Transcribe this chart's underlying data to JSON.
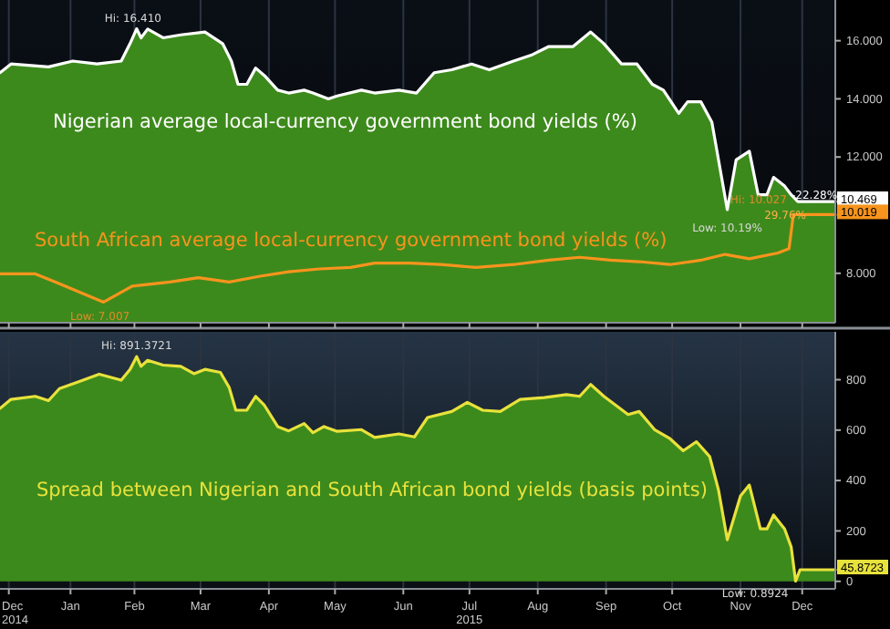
{
  "chart_data": [
    {
      "type": "area",
      "xlim": [
        "2014-12-14",
        "2015-12-28"
      ],
      "ylim": [
        6.3,
        17.4
      ],
      "xticks": [
        {
          "value": "2014-12-18",
          "label": null
        },
        {
          "value": "2015-01-15",
          "label": null
        },
        {
          "value": "2015-02-13",
          "label": null
        },
        {
          "value": "2015-03-15",
          "label": null
        },
        {
          "value": "2015-04-15",
          "label": null
        },
        {
          "value": "2015-05-15",
          "label": null
        },
        {
          "value": "2015-06-15",
          "label": null
        },
        {
          "value": "2015-07-15",
          "label": null
        },
        {
          "value": "2015-08-15",
          "label": null
        },
        {
          "value": "2015-09-15",
          "label": null
        },
        {
          "value": "2015-10-15",
          "label": null
        },
        {
          "value": "2015-11-15",
          "label": null
        },
        {
          "value": "2015-12-13",
          "label": null
        }
      ],
      "yticks": [
        {
          "value": 8,
          "label": "8.000"
        },
        {
          "value": 12,
          "label": "12.000"
        },
        {
          "value": 14,
          "label": "14.000"
        },
        {
          "value": 16,
          "label": "16.000"
        }
      ],
      "tick_labels": "y",
      "grid": "x",
      "series": [
        {
          "name": "Nigerian average local-currency government bond yields (%)",
          "color": "#ffffff",
          "x": [
            "2014-12-14",
            "2014-12-19",
            "2015-01-05",
            "2015-01-16",
            "2015-01-27",
            "2015-02-07",
            "2015-02-11",
            "2015-02-14",
            "2015-02-16",
            "2015-02-19",
            "2015-02-26",
            "2015-03-06",
            "2015-03-17",
            "2015-03-25",
            "2015-03-29",
            "2015-04-01",
            "2015-04-05",
            "2015-04-09",
            "2015-04-13",
            "2015-04-19",
            "2015-04-24",
            "2015-05-01",
            "2015-05-05",
            "2015-05-12",
            "2015-05-16",
            "2015-05-27",
            "2015-06-02",
            "2015-06-13",
            "2015-06-21",
            "2015-06-29",
            "2015-07-07",
            "2015-07-16",
            "2015-07-24",
            "2015-08-04",
            "2015-08-12",
            "2015-08-20",
            "2015-08-31",
            "2015-09-08",
            "2015-09-14",
            "2015-09-22",
            "2015-09-29",
            "2015-10-06",
            "2015-10-11",
            "2015-10-18",
            "2015-10-22",
            "2015-10-28",
            "2015-11-02",
            "2015-11-09",
            "2015-11-13",
            "2015-11-19",
            "2015-11-23",
            "2015-11-27",
            "2015-11-30",
            "2015-12-05",
            "2015-12-08",
            "2015-12-11",
            "2015-12-28"
          ],
          "values": [
            14.9,
            15.2,
            15.1,
            15.3,
            15.2,
            15.3,
            15.9,
            16.41,
            16.1,
            16.4,
            16.1,
            16.2,
            16.3,
            15.9,
            15.3,
            14.5,
            14.5,
            15.06,
            14.8,
            14.3,
            14.2,
            14.3,
            14.2,
            14.0,
            14.1,
            14.3,
            14.2,
            14.3,
            14.2,
            14.9,
            15.0,
            15.2,
            15.0,
            15.3,
            15.5,
            15.8,
            15.8,
            16.3,
            15.9,
            15.2,
            15.2,
            14.5,
            14.3,
            13.5,
            13.9,
            13.9,
            13.2,
            10.19,
            11.9,
            12.2,
            10.7,
            10.7,
            11.3,
            11.0,
            10.7,
            10.469,
            10.469
          ]
        },
        {
          "name": "South African average local-currency government bond yields (%)",
          "type": "line",
          "color": "#f7941d",
          "x": [
            "2014-12-14",
            "2014-12-30",
            "2015-01-08",
            "2015-01-30",
            "2015-02-12",
            "2015-03-01",
            "2015-03-14",
            "2015-03-28",
            "2015-04-11",
            "2015-04-24",
            "2015-05-08",
            "2015-05-22",
            "2015-06-02",
            "2015-06-18",
            "2015-07-02",
            "2015-07-18",
            "2015-08-04",
            "2015-08-20",
            "2015-09-03",
            "2015-09-17",
            "2015-09-30",
            "2015-10-14",
            "2015-10-28",
            "2015-11-08",
            "2015-11-19",
            "2015-12-02",
            "2015-12-07",
            "2015-12-09",
            "2015-12-28"
          ],
          "values": [
            7.98,
            7.98,
            7.7,
            7.007,
            7.56,
            7.7,
            7.85,
            7.7,
            7.9,
            8.05,
            8.15,
            8.2,
            8.35,
            8.35,
            8.3,
            8.2,
            8.3,
            8.45,
            8.55,
            8.45,
            8.4,
            8.3,
            8.45,
            8.65,
            8.5,
            8.7,
            8.85,
            10.019,
            10.019
          ]
        }
      ],
      "annotations": [
        {
          "text": "Hi: 16.410",
          "x": "2015-02-14",
          "y": 16.41
        },
        {
          "text": "Low: 7.007",
          "x": "2015-01-30",
          "y": 7.007
        },
        {
          "text": "Low: 10.19%",
          "x": "2015-11-09",
          "y": 10.19
        },
        {
          "text": "Hi: 10.027",
          "x": "2015-12-11",
          "y": 10.027
        },
        "-22.28%",
        "29.76%",
        {
          "text": "10.469",
          "x": "2015-12-28",
          "y": 10.469
        },
        {
          "text": "10.019",
          "x": "2015-12-28",
          "y": 10.019
        }
      ]
    },
    {
      "type": "area",
      "xlim": [
        "2014-12-14",
        "2015-12-28"
      ],
      "ylim": [
        -30,
        990
      ],
      "xticks": [
        {
          "value": "2014-12-18",
          "label": "Dec\n2014"
        },
        {
          "value": "2015-01-15",
          "label": "Jan"
        },
        {
          "value": "2015-02-13",
          "label": "Feb"
        },
        {
          "value": "2015-03-15",
          "label": "Mar"
        },
        {
          "value": "2015-04-15",
          "label": "Apr"
        },
        {
          "value": "2015-05-15",
          "label": "May"
        },
        {
          "value": "2015-06-15",
          "label": "Jun"
        },
        {
          "value": "2015-07-15",
          "label": "Jul\n2015"
        },
        {
          "value": "2015-08-15",
          "label": "Aug"
        },
        {
          "value": "2015-09-15",
          "label": "Sep"
        },
        {
          "value": "2015-10-15",
          "label": "Oct"
        },
        {
          "value": "2015-11-15",
          "label": "Nov"
        },
        {
          "value": "2015-12-13",
          "label": "Dec"
        }
      ],
      "yticks": [
        0,
        200,
        400,
        600,
        800
      ],
      "grid": "x",
      "series": [
        {
          "name": "Spread between Nigerian and South African bond yields (basis points)",
          "color": "#e8e23c",
          "x": [
            "2014-12-14",
            "2014-12-19",
            "2014-12-30",
            "2015-01-05",
            "2015-01-10",
            "2015-01-19",
            "2015-01-28",
            "2015-02-07",
            "2015-02-11",
            "2015-02-14",
            "2015-02-16",
            "2015-02-19",
            "2015-02-26",
            "2015-03-06",
            "2015-03-12",
            "2015-03-17",
            "2015-03-24",
            "2015-03-28",
            "2015-03-31",
            "2015-04-05",
            "2015-04-09",
            "2015-04-13",
            "2015-04-19",
            "2015-04-24",
            "2015-05-01",
            "2015-05-05",
            "2015-05-10",
            "2015-05-16",
            "2015-05-27",
            "2015-06-02",
            "2015-06-13",
            "2015-06-20",
            "2015-06-26",
            "2015-07-07",
            "2015-07-14",
            "2015-07-21",
            "2015-07-29",
            "2015-08-07",
            "2015-08-18",
            "2015-08-28",
            "2015-09-03",
            "2015-09-08",
            "2015-09-14",
            "2015-09-25",
            "2015-09-30",
            "2015-10-07",
            "2015-10-14",
            "2015-10-20",
            "2015-10-26",
            "2015-11-01",
            "2015-11-05",
            "2015-11-09",
            "2015-11-15",
            "2015-11-19",
            "2015-11-24",
            "2015-11-27",
            "2015-11-30",
            "2015-12-05",
            "2015-12-08",
            "2015-12-10",
            "2015-12-12",
            "2015-12-28"
          ],
          "values": [
            686,
            722,
            734,
            717,
            765,
            793,
            822,
            798,
            841,
            891.3721,
            853,
            877,
            858,
            853,
            824,
            841,
            829,
            769,
            679,
            679,
            734,
            698,
            614,
            597,
            626,
            590,
            614,
            595,
            602,
            571,
            585,
            573,
            650,
            674,
            710,
            679,
            674,
            722,
            729,
            741,
            734,
            781,
            734,
            662,
            674,
            602,
            566,
            518,
            554,
            495,
            363,
            165,
            339,
            382,
            208,
            208,
            263,
            208,
            136,
            0.8924,
            45.8723,
            45.8723
          ]
        }
      ],
      "annotations": [
        {
          "text": "Hi: 891.3721",
          "x": "2015-02-14",
          "y": 891.3721
        },
        {
          "text": "Low: 0.8924",
          "x": "2015-12-10",
          "y": 0.8924
        },
        {
          "text": "45.8723",
          "x": "2015-12-28",
          "y": 45.8723
        }
      ]
    }
  ]
}
